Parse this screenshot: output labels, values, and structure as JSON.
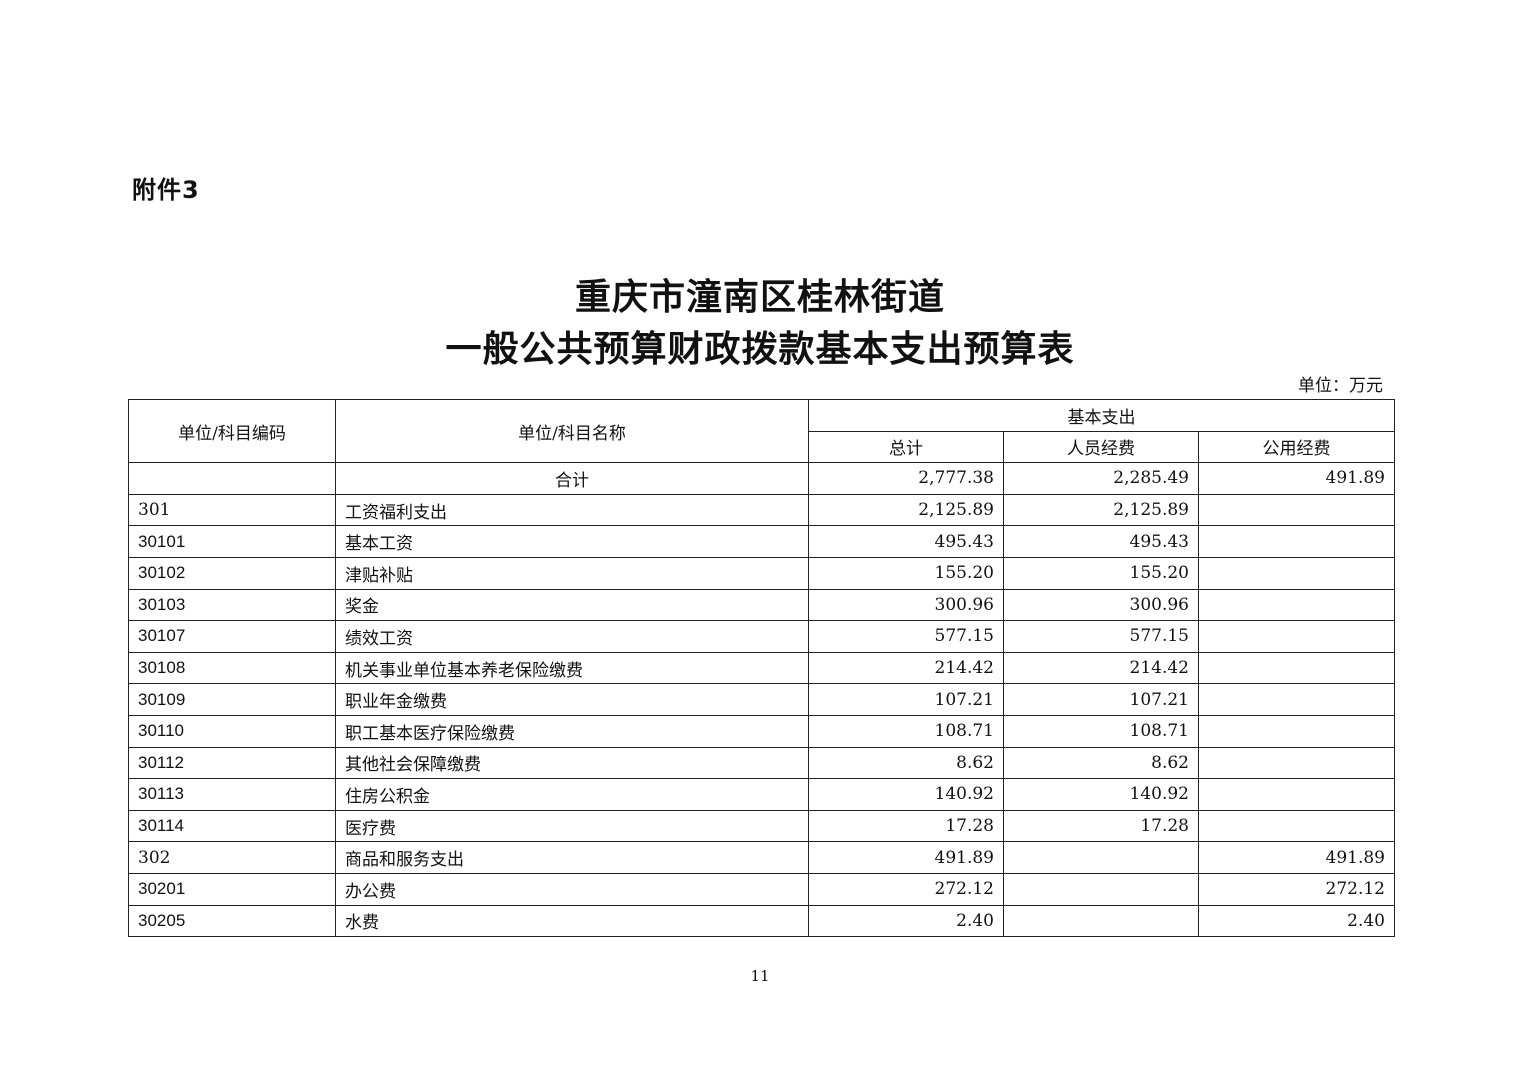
{
  "attachment_label": "附件3",
  "title_line1": "重庆市潼南区桂林街道",
  "title_line2": "一般公共预算财政拨款基本支出预算表",
  "unit": "单位：万元",
  "table": {
    "headers": {
      "code": "单位/科目编码",
      "name": "单位/科目名称",
      "group": "基本支出",
      "total": "总计",
      "personnel": "人员经费",
      "public": "公用经费"
    },
    "rows": [
      {
        "code": "",
        "name": "合计",
        "total": "2,777.38",
        "personnel": "2,285.49",
        "public": "491.89",
        "level": "sum"
      },
      {
        "code": "301",
        "name": "工资福利支出",
        "total": "2,125.89",
        "personnel": "2,125.89",
        "public": "",
        "level": "class"
      },
      {
        "code": "30101",
        "name": "基本工资",
        "total": "495.43",
        "personnel": "495.43",
        "public": "",
        "level": "item"
      },
      {
        "code": "30102",
        "name": "津贴补贴",
        "total": "155.20",
        "personnel": "155.20",
        "public": "",
        "level": "item"
      },
      {
        "code": "30103",
        "name": "奖金",
        "total": "300.96",
        "personnel": "300.96",
        "public": "",
        "level": "item"
      },
      {
        "code": "30107",
        "name": "绩效工资",
        "total": "577.15",
        "personnel": "577.15",
        "public": "",
        "level": "item"
      },
      {
        "code": "30108",
        "name": "机关事业单位基本养老保险缴费",
        "total": "214.42",
        "personnel": "214.42",
        "public": "",
        "level": "item"
      },
      {
        "code": "30109",
        "name": "职业年金缴费",
        "total": "107.21",
        "personnel": "107.21",
        "public": "",
        "level": "item"
      },
      {
        "code": "30110",
        "name": "职工基本医疗保险缴费",
        "total": "108.71",
        "personnel": "108.71",
        "public": "",
        "level": "item"
      },
      {
        "code": "30112",
        "name": "其他社会保障缴费",
        "total": "8.62",
        "personnel": "8.62",
        "public": "",
        "level": "item"
      },
      {
        "code": "30113",
        "name": "住房公积金",
        "total": "140.92",
        "personnel": "140.92",
        "public": "",
        "level": "item"
      },
      {
        "code": "30114",
        "name": "医疗费",
        "total": "17.28",
        "personnel": "17.28",
        "public": "",
        "level": "item"
      },
      {
        "code": "302",
        "name": "商品和服务支出",
        "total": "491.89",
        "personnel": "",
        "public": "491.89",
        "level": "class"
      },
      {
        "code": "30201",
        "name": "办公费",
        "total": "272.12",
        "personnel": "",
        "public": "272.12",
        "level": "item"
      },
      {
        "code": "30205",
        "name": "水费",
        "total": "2.40",
        "personnel": "",
        "public": "2.40",
        "level": "item"
      }
    ]
  },
  "page_number": "11"
}
